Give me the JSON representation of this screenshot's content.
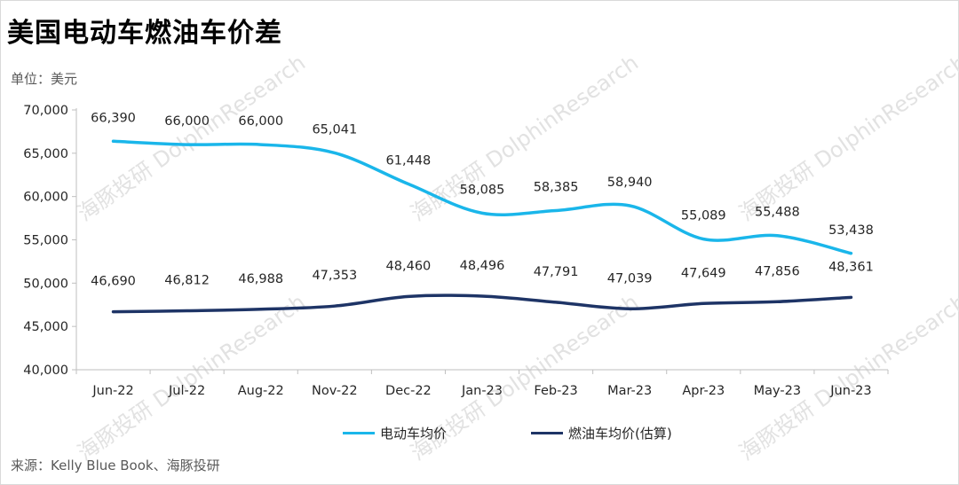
{
  "title": "美国电动车燃油车价差",
  "unit": "单位：美元",
  "source": "来源：Kelly Blue Book、海豚投研",
  "watermark": [
    "海豚投研",
    "DolphinResearch"
  ],
  "colors": {
    "ev": "#1ab6ea",
    "ice": "#1e3466",
    "axis": "#bfbfbf"
  },
  "chart_data": {
    "type": "line",
    "categories": [
      "Jun-22",
      "Jul-22",
      "Aug-22",
      "Nov-22",
      "Dec-22",
      "Jan-23",
      "Feb-23",
      "Mar-23",
      "Apr-23",
      "May-23",
      "Jun-23"
    ],
    "ylim": [
      40000,
      70000
    ],
    "yticks": [
      40000,
      45000,
      50000,
      55000,
      60000,
      65000,
      70000
    ],
    "ytick_labels": [
      "40,000",
      "45,000",
      "50,000",
      "55,000",
      "60,000",
      "65,000",
      "70,000"
    ],
    "grid": false,
    "legend_position": "bottom",
    "series": [
      {
        "name": "电动车均价",
        "values": [
          66390,
          66000,
          66000,
          65041,
          61448,
          58085,
          58385,
          58940,
          55089,
          55488,
          53438
        ],
        "labels": [
          "66,390",
          "66,000",
          "66,000",
          "65,041",
          "61,448",
          "58,085",
          "58,385",
          "58,940",
          "55,089",
          "55,488",
          "53,438"
        ]
      },
      {
        "name": "燃油车均价(估算)",
        "values": [
          46690,
          46812,
          46988,
          47353,
          48460,
          48496,
          47791,
          47039,
          47649,
          47856,
          48361
        ],
        "labels": [
          "46,690",
          "46,812",
          "46,988",
          "47,353",
          "48,460",
          "48,496",
          "47,791",
          "47,039",
          "47,649",
          "47,856",
          "48,361"
        ]
      }
    ]
  }
}
